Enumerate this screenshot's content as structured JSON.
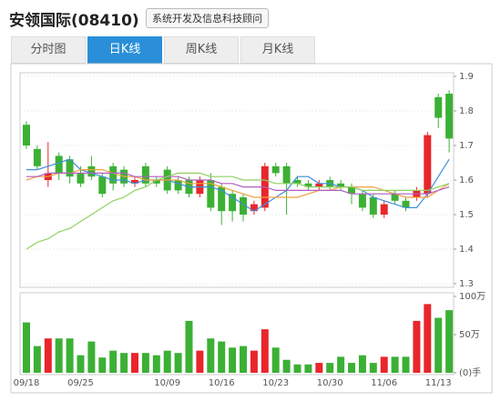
{
  "header": {
    "title": "安领国际(08410)",
    "tag": "系统开发及信息科技顾问"
  },
  "tabs": {
    "items": [
      "分时图",
      "日K线",
      "周K线",
      "月K线"
    ],
    "active": 1
  },
  "chart_data": [
    {
      "type": "candlestick",
      "categories": [
        "09/18",
        null,
        null,
        null,
        null,
        "09/25",
        null,
        null,
        null,
        null,
        null,
        null,
        null,
        "10/09",
        null,
        null,
        null,
        null,
        "10/16",
        null,
        null,
        null,
        null,
        "10/23",
        null,
        null,
        null,
        null,
        "10/30",
        null,
        null,
        null,
        null,
        "11/06",
        null,
        null,
        null,
        null,
        "11/13",
        null
      ],
      "open": [
        1.76,
        1.69,
        1.6,
        1.67,
        1.66,
        1.62,
        1.64,
        1.61,
        1.64,
        1.63,
        1.59,
        1.64,
        1.6,
        1.63,
        1.6,
        1.6,
        1.56,
        1.6,
        1.58,
        1.56,
        1.55,
        1.51,
        1.52,
        1.64,
        1.64,
        1.6,
        1.59,
        1.58,
        1.6,
        1.59,
        1.58,
        1.56,
        1.55,
        1.5,
        1.56,
        1.54,
        1.55,
        1.56,
        1.84,
        1.85
      ],
      "high": [
        1.77,
        1.7,
        1.71,
        1.68,
        1.67,
        1.64,
        1.67,
        1.62,
        1.65,
        1.64,
        1.61,
        1.65,
        1.61,
        1.64,
        1.61,
        1.61,
        1.61,
        1.62,
        1.59,
        1.57,
        1.56,
        1.54,
        1.65,
        1.65,
        1.65,
        1.61,
        1.6,
        1.6,
        1.61,
        1.6,
        1.59,
        1.57,
        1.56,
        1.54,
        1.57,
        1.55,
        1.58,
        1.74,
        1.85,
        1.86
      ],
      "low": [
        1.69,
        1.63,
        1.58,
        1.6,
        1.59,
        1.58,
        1.6,
        1.55,
        1.57,
        1.58,
        1.58,
        1.58,
        1.58,
        1.56,
        1.56,
        1.55,
        1.55,
        1.51,
        1.47,
        1.48,
        1.48,
        1.5,
        1.51,
        1.61,
        1.5,
        1.58,
        1.57,
        1.57,
        1.57,
        1.57,
        1.53,
        1.51,
        1.49,
        1.49,
        1.53,
        1.51,
        1.54,
        1.55,
        1.75,
        1.68
      ],
      "close": [
        1.7,
        1.64,
        1.62,
        1.62,
        1.61,
        1.59,
        1.61,
        1.56,
        1.59,
        1.59,
        1.6,
        1.59,
        1.59,
        1.57,
        1.57,
        1.56,
        1.6,
        1.52,
        1.51,
        1.51,
        1.5,
        1.53,
        1.64,
        1.62,
        1.59,
        1.59,
        1.58,
        1.59,
        1.58,
        1.58,
        1.56,
        1.52,
        1.5,
        1.53,
        1.54,
        1.52,
        1.57,
        1.73,
        1.78,
        1.72
      ],
      "up_color": "#e8262b",
      "down_color": "#3cb035",
      "lines": [
        {
          "color": "#3d8fd8",
          "values": [
            1.63,
            1.63,
            1.64,
            1.65,
            1.66,
            1.63,
            1.62,
            1.61,
            1.6,
            1.6,
            1.59,
            1.6,
            1.6,
            1.6,
            1.59,
            1.58,
            1.58,
            1.58,
            1.57,
            1.55,
            1.53,
            1.51,
            1.53,
            1.55,
            1.57,
            1.61,
            1.61,
            1.59,
            1.59,
            1.58,
            1.58,
            1.57,
            1.55,
            1.54,
            1.53,
            1.52,
            1.52,
            1.56,
            1.61,
            1.66
          ]
        },
        {
          "color": "#f0a040",
          "values": [
            1.6,
            1.61,
            1.61,
            1.62,
            1.62,
            1.63,
            1.63,
            1.63,
            1.62,
            1.61,
            1.61,
            1.6,
            1.6,
            1.6,
            1.6,
            1.59,
            1.59,
            1.59,
            1.58,
            1.57,
            1.56,
            1.55,
            1.55,
            1.55,
            1.55,
            1.55,
            1.56,
            1.57,
            1.57,
            1.58,
            1.58,
            1.58,
            1.58,
            1.57,
            1.56,
            1.55,
            1.55,
            1.55,
            1.57,
            1.59
          ]
        },
        {
          "color": "#b05fc0",
          "values": [
            1.61,
            1.61,
            1.62,
            1.62,
            1.62,
            1.62,
            1.62,
            1.62,
            1.62,
            1.62,
            1.61,
            1.61,
            1.61,
            1.61,
            1.61,
            1.6,
            1.6,
            1.6,
            1.59,
            1.59,
            1.58,
            1.58,
            1.58,
            1.57,
            1.57,
            1.57,
            1.57,
            1.57,
            1.57,
            1.57,
            1.56,
            1.56,
            1.56,
            1.56,
            1.56,
            1.56,
            1.56,
            1.56,
            1.57,
            1.58
          ]
        },
        {
          "color": "#90d060",
          "values": [
            1.4,
            1.42,
            1.43,
            1.45,
            1.46,
            1.48,
            1.5,
            1.52,
            1.54,
            1.55,
            1.57,
            1.58,
            1.6,
            1.61,
            1.62,
            1.62,
            1.62,
            1.61,
            1.61,
            1.61,
            1.6,
            1.6,
            1.6,
            1.59,
            1.59,
            1.59,
            1.58,
            1.58,
            1.58,
            1.58,
            1.58,
            1.57,
            1.57,
            1.57,
            1.57,
            1.57,
            1.57,
            1.57,
            1.58,
            1.59
          ]
        }
      ],
      "ylim": [
        1.3,
        1.9
      ],
      "yticks": [
        1.3,
        1.4,
        1.5,
        1.6,
        1.7,
        1.8,
        1.9
      ],
      "grid": true
    },
    {
      "type": "volume",
      "values": [
        66,
        35,
        45,
        45,
        45,
        23,
        41,
        20,
        29,
        26,
        26,
        26,
        23,
        29,
        26,
        68,
        29,
        45,
        41,
        33,
        35,
        29,
        57,
        33,
        17,
        11,
        11,
        13,
        13,
        21,
        13,
        23,
        13,
        21,
        21,
        21,
        68,
        90,
        72,
        82
      ],
      "ylim": [
        0,
        100
      ],
      "yticks": [
        {
          "value": 0,
          "label": "(0)手"
        },
        {
          "value": 50,
          "label": "50万"
        },
        {
          "value": 100,
          "label": "100万"
        }
      ]
    }
  ]
}
